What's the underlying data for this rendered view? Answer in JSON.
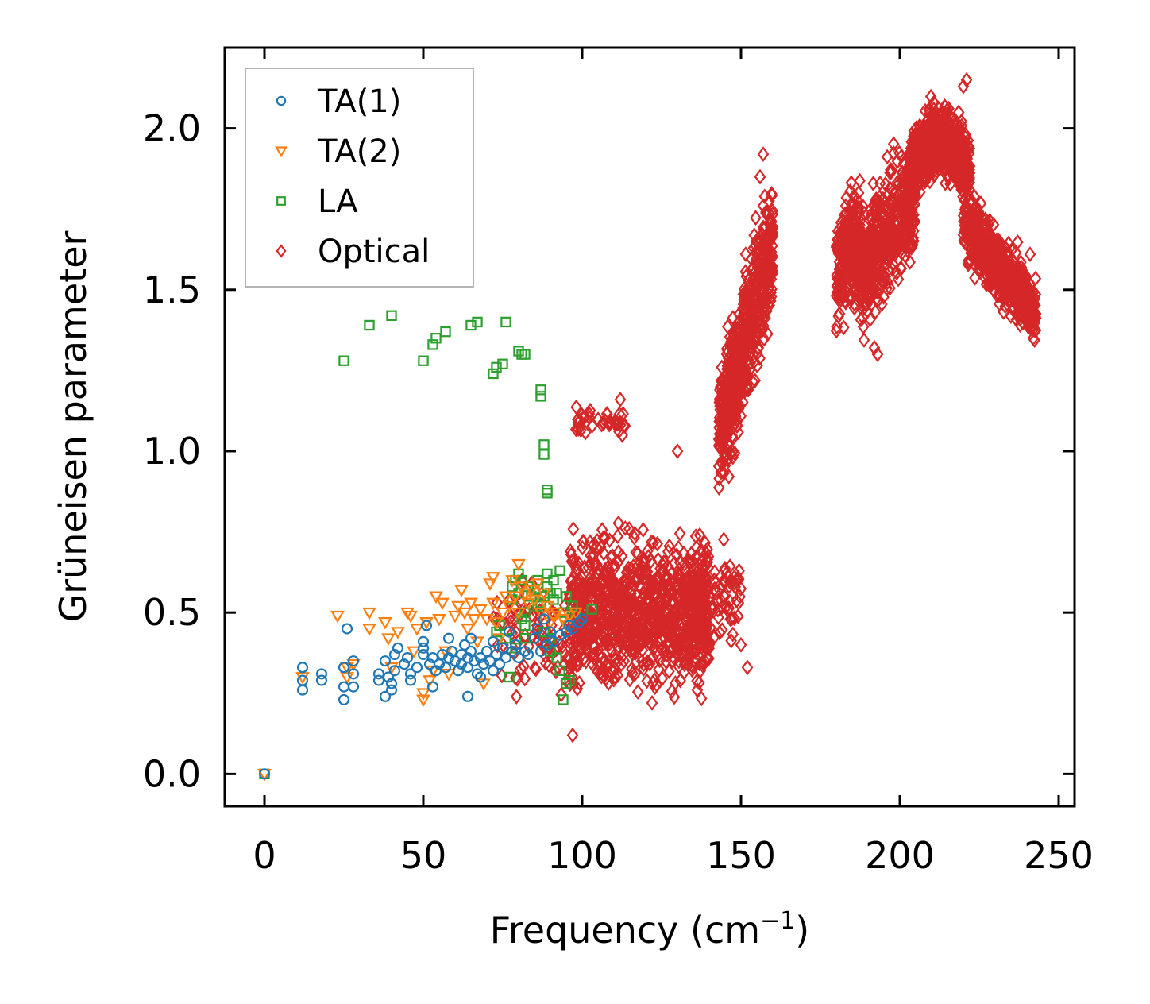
{
  "chart_data": {
    "type": "scatter",
    "title": "",
    "xlabel": "Frequency (cm",
    "xlabel_superscript": "−1",
    "xlabel_suffix": ")",
    "ylabel": "Grüneisen parameter",
    "xlim": [
      -12.5,
      255
    ],
    "ylim": [
      -0.1,
      2.25
    ],
    "xticks": [
      0,
      50,
      100,
      150,
      200,
      250
    ],
    "xtick_labels": [
      "0",
      "50",
      "100",
      "150",
      "200",
      "250"
    ],
    "yticks": [
      0.0,
      0.5,
      1.0,
      1.5,
      2.0
    ],
    "ytick_labels": [
      "0.0",
      "0.5",
      "1.0",
      "1.5",
      "2.0"
    ],
    "grid": false,
    "legend_position": "top-left",
    "series": [
      {
        "name": "TA(1)",
        "marker": "circle",
        "color": "#1f77b4",
        "points": [
          [
            0,
            0
          ],
          [
            12,
            0.33
          ],
          [
            12,
            0.29
          ],
          [
            12,
            0.26
          ],
          [
            18,
            0.31
          ],
          [
            18,
            0.29
          ],
          [
            25,
            0.33
          ],
          [
            25,
            0.27
          ],
          [
            25,
            0.23
          ],
          [
            26,
            0.45
          ],
          [
            28,
            0.35
          ],
          [
            28,
            0.31
          ],
          [
            28,
            0.27
          ],
          [
            36,
            0.31
          ],
          [
            36,
            0.29
          ],
          [
            38,
            0.24
          ],
          [
            38,
            0.35
          ],
          [
            39,
            0.3
          ],
          [
            40,
            0.28
          ],
          [
            40,
            0.26
          ],
          [
            41,
            0.32
          ],
          [
            41,
            0.37
          ],
          [
            42,
            0.39
          ],
          [
            44,
            0.34
          ],
          [
            45,
            0.36
          ],
          [
            46,
            0.31
          ],
          [
            46,
            0.29
          ],
          [
            48,
            0.33
          ],
          [
            50,
            0.37
          ],
          [
            50,
            0.39
          ],
          [
            50,
            0.41
          ],
          [
            51,
            0.46
          ],
          [
            52,
            0.34
          ],
          [
            53,
            0.36
          ],
          [
            53,
            0.27
          ],
          [
            54,
            0.32
          ],
          [
            55,
            0.34
          ],
          [
            56,
            0.37
          ],
          [
            57,
            0.33
          ],
          [
            58,
            0.42
          ],
          [
            58,
            0.36
          ],
          [
            59,
            0.38
          ],
          [
            60,
            0.35
          ],
          [
            61,
            0.32
          ],
          [
            62,
            0.37
          ],
          [
            62,
            0.34
          ],
          [
            63,
            0.4
          ],
          [
            64,
            0.36
          ],
          [
            64,
            0.33
          ],
          [
            64,
            0.24
          ],
          [
            65,
            0.42
          ],
          [
            65,
            0.38
          ],
          [
            66,
            0.35
          ],
          [
            67,
            0.31
          ],
          [
            68,
            0.36
          ],
          [
            68,
            0.3
          ],
          [
            69,
            0.34
          ],
          [
            70,
            0.38
          ],
          [
            71,
            0.35
          ],
          [
            72,
            0.32
          ],
          [
            72,
            0.41
          ],
          [
            73,
            0.37
          ],
          [
            74,
            0.34
          ],
          [
            75,
            0.39
          ],
          [
            76,
            0.36
          ],
          [
            77,
            0.44
          ],
          [
            78,
            0.38
          ],
          [
            79,
            0.4
          ],
          [
            80,
            0.36
          ],
          [
            82,
            0.38
          ],
          [
            83,
            0.37
          ],
          [
            85,
            0.42
          ],
          [
            86,
            0.45
          ],
          [
            87,
            0.38
          ],
          [
            88,
            0.48
          ],
          [
            89,
            0.4
          ],
          [
            90,
            0.44
          ],
          [
            91,
            0.41
          ],
          [
            93,
            0.43
          ],
          [
            95,
            0.44
          ],
          [
            96,
            0.46
          ],
          [
            97,
            0.45
          ],
          [
            99,
            0.47
          ],
          [
            100,
            0.48
          ]
        ]
      },
      {
        "name": "TA(2)",
        "marker": "triangle-down",
        "color": "#ff7f0e",
        "points": [
          [
            0,
            0
          ],
          [
            12,
            0.3
          ],
          [
            23,
            0.49
          ],
          [
            26,
            0.33
          ],
          [
            26,
            0.3
          ],
          [
            28,
            0.34
          ],
          [
            33,
            0.5
          ],
          [
            33,
            0.45
          ],
          [
            38,
            0.47
          ],
          [
            39,
            0.42
          ],
          [
            40,
            0.33
          ],
          [
            42,
            0.44
          ],
          [
            45,
            0.5
          ],
          [
            46,
            0.49
          ],
          [
            47,
            0.38
          ],
          [
            48,
            0.45
          ],
          [
            50,
            0.25
          ],
          [
            50,
            0.23
          ],
          [
            51,
            0.47
          ],
          [
            52,
            0.29
          ],
          [
            53,
            0.32
          ],
          [
            54,
            0.55
          ],
          [
            55,
            0.48
          ],
          [
            56,
            0.53
          ],
          [
            57,
            0.38
          ],
          [
            58,
            0.31
          ],
          [
            60,
            0.49
          ],
          [
            61,
            0.52
          ],
          [
            62,
            0.57
          ],
          [
            63,
            0.5
          ],
          [
            64,
            0.45
          ],
          [
            65,
            0.53
          ],
          [
            66,
            0.48
          ],
          [
            67,
            0.41
          ],
          [
            68,
            0.51
          ],
          [
            69,
            0.28
          ],
          [
            70,
            0.48
          ],
          [
            71,
            0.59
          ],
          [
            72,
            0.61
          ],
          [
            72,
            0.53
          ],
          [
            73,
            0.47
          ],
          [
            74,
            0.42
          ],
          [
            75,
            0.5
          ],
          [
            76,
            0.55
          ],
          [
            77,
            0.52
          ],
          [
            78,
            0.6
          ],
          [
            79,
            0.55
          ],
          [
            80,
            0.65
          ],
          [
            80,
            0.5
          ],
          [
            81,
            0.58
          ],
          [
            82,
            0.56
          ],
          [
            83,
            0.53
          ],
          [
            84,
            0.57
          ],
          [
            85,
            0.54
          ],
          [
            86,
            0.59
          ],
          [
            87,
            0.5
          ],
          [
            88,
            0.56
          ],
          [
            89,
            0.52
          ],
          [
            90,
            0.47
          ],
          [
            91,
            0.49
          ],
          [
            92,
            0.5
          ],
          [
            94,
            0.48
          ],
          [
            95,
            0.46
          ],
          [
            96,
            0.49
          ],
          [
            98,
            0.5
          ]
        ]
      },
      {
        "name": "LA",
        "marker": "square",
        "color": "#2ca02c",
        "points": [
          [
            0,
            0
          ],
          [
            25,
            1.28
          ],
          [
            33,
            1.39
          ],
          [
            40,
            1.42
          ],
          [
            50,
            1.28
          ],
          [
            53,
            1.33
          ],
          [
            54,
            1.35
          ],
          [
            57,
            1.37
          ],
          [
            65,
            1.39
          ],
          [
            67,
            1.4
          ],
          [
            72,
            1.24
          ],
          [
            73,
            1.26
          ],
          [
            75,
            1.27
          ],
          [
            76,
            1.4
          ],
          [
            80,
            1.31
          ],
          [
            81,
            1.3
          ],
          [
            82,
            1.3
          ],
          [
            87,
            1.19
          ],
          [
            87,
            1.17
          ],
          [
            88,
            1.02
          ],
          [
            88,
            0.99
          ],
          [
            89,
            0.88
          ],
          [
            89,
            0.87
          ],
          [
            78,
            0.58
          ],
          [
            78,
            0.54
          ],
          [
            79,
            0.6
          ],
          [
            80,
            0.56
          ],
          [
            80,
            0.62
          ],
          [
            81,
            0.6
          ],
          [
            82,
            0.5
          ],
          [
            82,
            0.46
          ],
          [
            83,
            0.58
          ],
          [
            84,
            0.55
          ],
          [
            85,
            0.57
          ],
          [
            86,
            0.52
          ],
          [
            86,
            0.6
          ],
          [
            87,
            0.53
          ],
          [
            88,
            0.55
          ],
          [
            88,
            0.44
          ],
          [
            89,
            0.58
          ],
          [
            89,
            0.62
          ],
          [
            90,
            0.56
          ],
          [
            90,
            0.42
          ],
          [
            90,
            0.38
          ],
          [
            91,
            0.6
          ],
          [
            91,
            0.54
          ],
          [
            92,
            0.56
          ],
          [
            92,
            0.36
          ],
          [
            93,
            0.63
          ],
          [
            93,
            0.32
          ],
          [
            94,
            0.5
          ],
          [
            94,
            0.23
          ],
          [
            95,
            0.55
          ],
          [
            95,
            0.28
          ],
          [
            96,
            0.29
          ],
          [
            97,
            0.52
          ],
          [
            98,
            0.5
          ],
          [
            103,
            0.51
          ],
          [
            77,
            0.3
          ],
          [
            74,
            0.46
          ],
          [
            73,
            0.44
          ],
          [
            76,
            0.42
          ],
          [
            81,
            0.48
          ],
          [
            82,
            0.42
          ],
          [
            79,
            0.39
          ]
        ]
      },
      {
        "name": "Optical",
        "marker": "diamond",
        "color": "#d62728",
        "clusters": [
          {
            "freq_min": 72,
            "freq_max": 100,
            "gamma_center": 0.42,
            "gamma_spread": 0.27,
            "count": 90
          },
          {
            "freq_min": 96,
            "freq_max": 140,
            "gamma_center": 0.5,
            "gamma_spread": 0.36,
            "count": 950
          },
          {
            "freq_min": 98,
            "freq_max": 114,
            "gamma_center": 1.09,
            "gamma_spread": 0.07,
            "count": 40
          },
          {
            "freq_min": 130,
            "freq_max": 150,
            "gamma_center": 0.55,
            "gamma_spread": 0.22,
            "count": 130
          },
          {
            "freq_min": 143,
            "freq_max": 160,
            "gamma_center": 1.35,
            "gamma_spread": 0.32,
            "count": 650
          },
          {
            "freq_min": 180,
            "freq_max": 205,
            "gamma_center": 1.6,
            "gamma_spread": 0.3,
            "count": 700
          },
          {
            "freq_min": 203,
            "freq_max": 222,
            "gamma_center": 1.93,
            "gamma_spread": 0.17,
            "count": 650
          },
          {
            "freq_min": 220,
            "freq_max": 243,
            "gamma_center": 1.52,
            "gamma_spread": 0.17,
            "count": 600
          }
        ],
        "points": [
          [
            97,
            0.12
          ],
          [
            112,
            1.16
          ],
          [
            122,
            0.22
          ],
          [
            130,
            1.0
          ],
          [
            137,
            0.74
          ],
          [
            150,
            0.4
          ],
          [
            152,
            0.33
          ],
          [
            157,
            1.92
          ],
          [
            156,
            1.85
          ],
          [
            157,
            1.76
          ],
          [
            221,
            2.15
          ],
          [
            220,
            2.13
          ],
          [
            193,
            1.3
          ],
          [
            192,
            1.32
          ],
          [
            242,
            1.35
          ],
          [
            241,
            1.61
          ]
        ]
      }
    ]
  }
}
